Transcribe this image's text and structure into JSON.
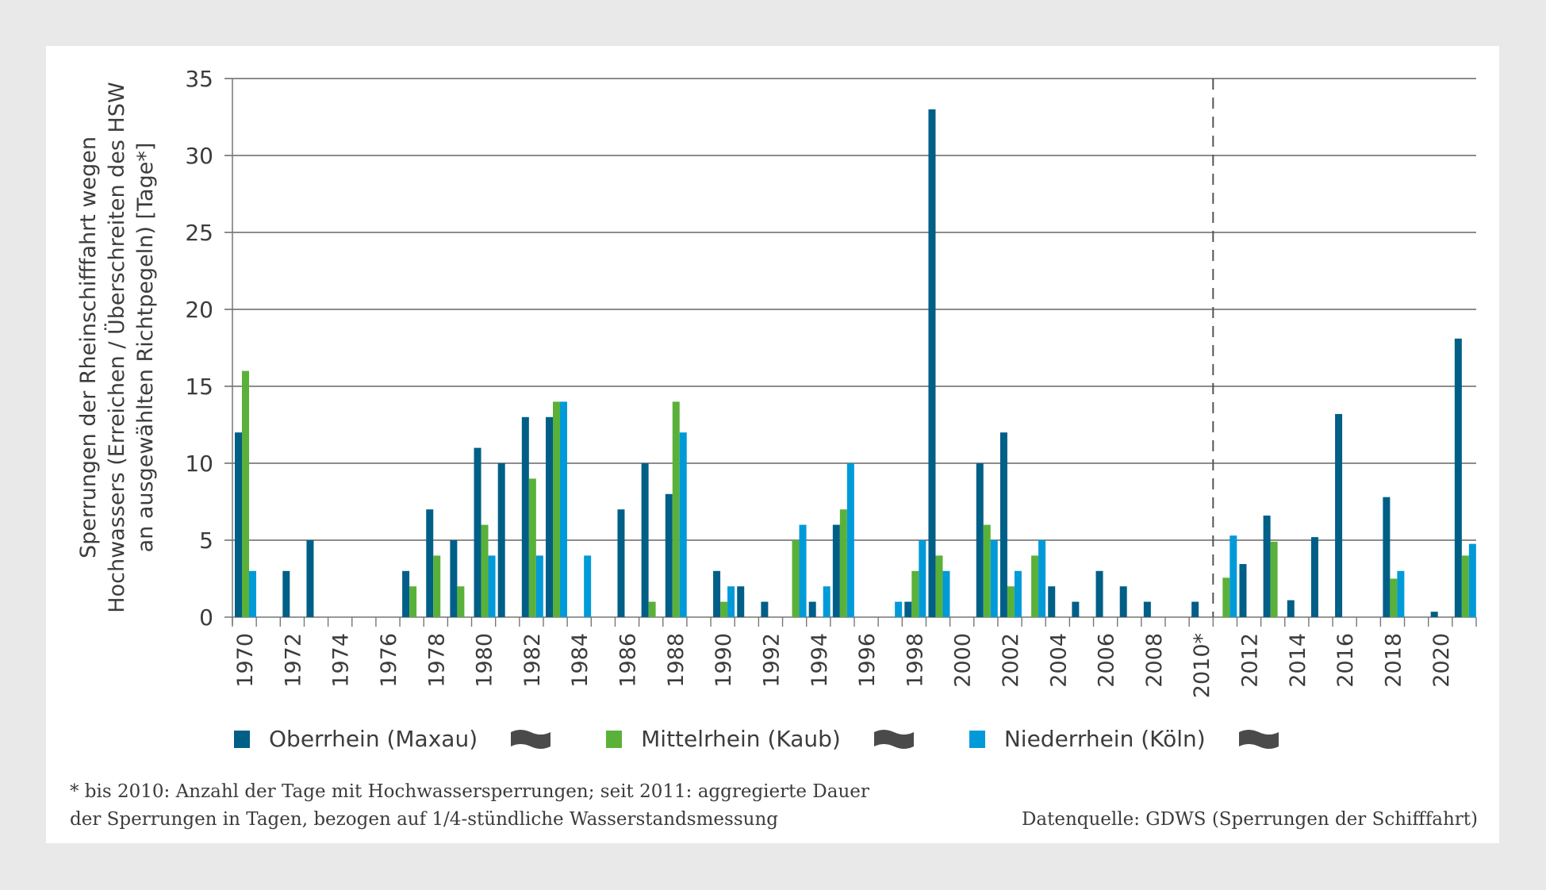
{
  "chart_data": {
    "type": "bar",
    "ylabel_lines": [
      "Sperrungen der Rheinschifffahrt wegen",
      "Hochwassers (Erreichen / Überschreiten des HSW",
      "an ausgewählten Richtpegeln)  [Tage*]"
    ],
    "ylim": [
      0,
      35
    ],
    "y_ticks": [
      "0",
      "5",
      "10",
      "15",
      "20",
      "25",
      "30",
      "35"
    ],
    "grid": true,
    "categories": [
      1970,
      1971,
      1972,
      1973,
      1974,
      1975,
      1976,
      1977,
      1978,
      1979,
      1980,
      1981,
      1982,
      1983,
      1984,
      1985,
      1986,
      1987,
      1988,
      1989,
      1990,
      1991,
      1992,
      1993,
      1994,
      1995,
      1996,
      1997,
      1998,
      1999,
      2000,
      2001,
      2002,
      2003,
      2004,
      2005,
      2006,
      2007,
      2008,
      2009,
      2010,
      2011,
      2012,
      2013,
      2014,
      2015,
      2016,
      2017,
      2018,
      2019,
      2020,
      2021
    ],
    "x_tick_labels": [
      "1970",
      "1972",
      "1974",
      "1976",
      "1978",
      "1980",
      "1982",
      "1984",
      "1986",
      "1988",
      "1990",
      "1992",
      "1994",
      "1996",
      "1998",
      "2000",
      "2002",
      "2004",
      "2006",
      "2008",
      "2010*",
      "2012",
      "2014",
      "2016",
      "2018",
      "2020"
    ],
    "divider_after": 2010,
    "series": [
      {
        "name": "Oberrhein (Maxau)",
        "color": "#005f87",
        "values": [
          12,
          0,
          3,
          5,
          0,
          0,
          0,
          3,
          7,
          5,
          11,
          10,
          13,
          13,
          0,
          0,
          7,
          10,
          8,
          0,
          3,
          2,
          1,
          0,
          1,
          6,
          0,
          0,
          1,
          33,
          0,
          10,
          12,
          0,
          2,
          1,
          3,
          2,
          1,
          0,
          1,
          0,
          3.45,
          6.6,
          1.1,
          5.2,
          13.2,
          0,
          7.8,
          0,
          0.35,
          18.1
        ]
      },
      {
        "name": "Mittelrhein (Kaub)",
        "color": "#5ab13a",
        "values": [
          16,
          0,
          0,
          0,
          0,
          0,
          0,
          2,
          4,
          2,
          6,
          0,
          9,
          14,
          0,
          0,
          0,
          1,
          14,
          0,
          1,
          0,
          0,
          5,
          0,
          7,
          0,
          0,
          3,
          4,
          0,
          6,
          2,
          4,
          0,
          0,
          0,
          0,
          0,
          0,
          0,
          2.56,
          0,
          4.9,
          0,
          0,
          0,
          0,
          2.5,
          0,
          0,
          4.0
        ]
      },
      {
        "name": "Niederrhein (Köln)",
        "color": "#009ad9",
        "values": [
          3,
          0,
          0,
          0,
          0,
          0,
          0,
          0,
          0,
          0,
          4,
          0,
          4,
          14,
          4,
          0,
          0,
          0,
          12,
          0,
          2,
          0,
          0,
          6,
          2,
          10,
          0,
          1,
          5,
          3,
          0,
          5,
          3,
          5,
          0,
          0,
          0,
          0,
          0,
          0,
          0,
          5.3,
          0,
          0,
          0,
          0,
          0,
          0,
          3.0,
          0,
          0,
          4.76
        ]
      }
    ],
    "legend_placement": "bottom",
    "legend_icon": "wave-flag-icon"
  },
  "footnote": {
    "line1": "* bis 2010: Anzahl der Tage mit Hochwassersperrungen; seit 2011: aggregierte Dauer",
    "line2": "der Sperrungen in Tagen, bezogen auf 1/4-stündliche Wasserstandsmessung",
    "source": "Datenquelle: GDWS (Sperrungen der Schifffahrt)"
  }
}
